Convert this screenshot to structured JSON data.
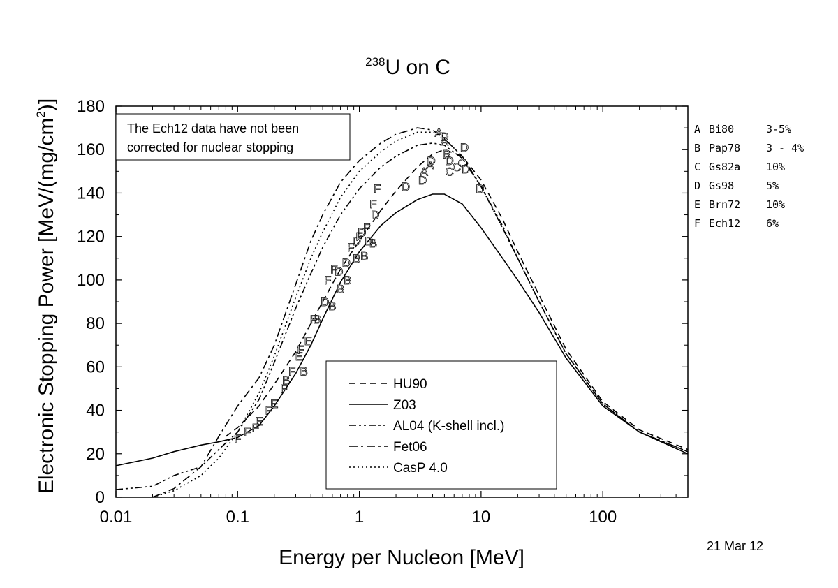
{
  "chart_data": {
    "type": "line",
    "title_sup": "238",
    "title_main": "U on C",
    "xlabel": "Energy per Nucleon [MeV]",
    "ylabel_main": "Electronic Stopping Power [MeV/(mg/cm",
    "ylabel_sup": "2",
    "ylabel_end": ")]",
    "x_scale": "log",
    "xlim": [
      0.01,
      500
    ],
    "ylim": [
      0,
      180
    ],
    "x_ticks": [
      {
        "value": 0.01,
        "label": "0.01"
      },
      {
        "value": 0.1,
        "label": "0.1"
      },
      {
        "value": 1,
        "label": "1"
      },
      {
        "value": 10,
        "label": "10"
      },
      {
        "value": 100,
        "label": "100"
      }
    ],
    "y_ticks": [
      {
        "value": 0,
        "label": "0"
      },
      {
        "value": 20,
        "label": "20"
      },
      {
        "value": 40,
        "label": "40"
      },
      {
        "value": 60,
        "label": "60"
      },
      {
        "value": 80,
        "label": "80"
      },
      {
        "value": 100,
        "label": "100"
      },
      {
        "value": 120,
        "label": "120"
      },
      {
        "value": 140,
        "label": "140"
      },
      {
        "value": 160,
        "label": "160"
      },
      {
        "value": 180,
        "label": "180"
      }
    ],
    "grid": false,
    "legend_placement": "bottom-center",
    "series": [
      {
        "name": "HU90",
        "dash": "dash",
        "x": [
          0.08,
          0.1,
          0.15,
          0.2,
          0.3,
          0.4,
          0.5,
          0.7,
          1,
          1.5,
          2,
          3,
          4,
          5,
          7,
          10,
          15,
          20,
          30,
          50,
          100,
          200,
          500
        ],
        "y": [
          28,
          32,
          42,
          52,
          67,
          80,
          90,
          105,
          118,
          132,
          141,
          152,
          158,
          160,
          157,
          146,
          128,
          113,
          93,
          68,
          44,
          31,
          22
        ]
      },
      {
        "name": "Z03",
        "dash": "solid",
        "x": [
          0.01,
          0.02,
          0.03,
          0.05,
          0.07,
          0.1,
          0.15,
          0.2,
          0.3,
          0.4,
          0.5,
          0.7,
          1,
          1.5,
          2,
          3,
          4,
          5,
          7,
          10,
          15,
          20,
          30,
          50,
          100,
          200,
          500
        ],
        "y": [
          14.5,
          18,
          21,
          24,
          25.5,
          27.5,
          33,
          42,
          57,
          70,
          82,
          99,
          113,
          125,
          131,
          137,
          139.5,
          139.5,
          135,
          124,
          110,
          100,
          85,
          64,
          42,
          30,
          20
        ]
      },
      {
        "name": "AL04 (K-shell incl.)",
        "dash": "dashdotdot",
        "x": [
          0.01,
          0.02,
          0.03,
          0.05,
          0.07,
          0.1,
          0.15,
          0.2,
          0.3,
          0.4,
          0.5,
          0.7,
          1,
          1.5,
          2,
          3,
          4,
          5,
          7,
          10,
          15,
          20,
          30,
          50,
          100,
          200,
          500
        ],
        "y": [
          3.5,
          5,
          10,
          14,
          22,
          30,
          45,
          62,
          87,
          103,
          115,
          130,
          142,
          152,
          157,
          162,
          163,
          162,
          156,
          143,
          125,
          110,
          90,
          66,
          43,
          30,
          21
        ]
      },
      {
        "name": "Fet06",
        "dash": "dashdot",
        "x": [
          0.02,
          0.03,
          0.05,
          0.07,
          0.1,
          0.15,
          0.2,
          0.3,
          0.4,
          0.5,
          0.7,
          1,
          1.5,
          2,
          3,
          4,
          5,
          7,
          10,
          15,
          20,
          30,
          50,
          100,
          200,
          500
        ],
        "y": [
          0,
          4,
          14,
          28,
          42,
          55,
          70,
          98,
          118,
          130,
          145,
          155,
          163,
          167,
          170,
          169,
          165,
          157,
          143,
          124,
          110,
          90,
          66,
          43,
          30,
          21
        ]
      },
      {
        "name": "CasP 4.0",
        "dash": "dot",
        "x": [
          0.02,
          0.03,
          0.05,
          0.07,
          0.1,
          0.15,
          0.2,
          0.3,
          0.4,
          0.5,
          0.7,
          1,
          1.5,
          2,
          3,
          4,
          5,
          7,
          10,
          15,
          20,
          30,
          50,
          100,
          200,
          500
        ],
        "y": [
          0,
          3,
          10,
          18,
          30,
          48,
          65,
          92,
          110,
          122,
          138,
          150,
          159,
          164,
          168,
          168,
          165,
          157,
          143,
          124,
          110,
          90,
          66,
          43,
          30,
          21
        ]
      }
    ],
    "experimental_points": [
      {
        "label": "A",
        "x": 3.4,
        "y": 150
      },
      {
        "label": "A",
        "x": 3.8,
        "y": 153
      },
      {
        "label": "A",
        "x": 4.5,
        "y": 168
      },
      {
        "label": "A",
        "x": 5.0,
        "y": 164
      },
      {
        "label": "B",
        "x": 0.25,
        "y": 54
      },
      {
        "label": "B",
        "x": 0.35,
        "y": 58
      },
      {
        "label": "B",
        "x": 0.45,
        "y": 82
      },
      {
        "label": "B",
        "x": 0.6,
        "y": 88
      },
      {
        "label": "B",
        "x": 0.7,
        "y": 96
      },
      {
        "label": "B",
        "x": 0.8,
        "y": 100
      },
      {
        "label": "B",
        "x": 0.95,
        "y": 110
      },
      {
        "label": "B",
        "x": 1.1,
        "y": 111
      },
      {
        "label": "B",
        "x": 1.3,
        "y": 117
      },
      {
        "label": "B",
        "x": 5.2,
        "y": 158
      },
      {
        "label": "C",
        "x": 5.5,
        "y": 150
      },
      {
        "label": "C",
        "x": 6.3,
        "y": 152
      },
      {
        "label": "C",
        "x": 7.0,
        "y": 154
      },
      {
        "label": "D",
        "x": 0.52,
        "y": 90
      },
      {
        "label": "D",
        "x": 0.68,
        "y": 104
      },
      {
        "label": "D",
        "x": 0.78,
        "y": 108
      },
      {
        "label": "D",
        "x": 0.95,
        "y": 118
      },
      {
        "label": "D",
        "x": 1.05,
        "y": 122
      },
      {
        "label": "D",
        "x": 1.2,
        "y": 118
      },
      {
        "label": "D",
        "x": 1.35,
        "y": 130
      },
      {
        "label": "D",
        "x": 2.4,
        "y": 143
      },
      {
        "label": "D",
        "x": 3.3,
        "y": 146
      },
      {
        "label": "D",
        "x": 3.9,
        "y": 155
      },
      {
        "label": "D",
        "x": 5.0,
        "y": 166
      },
      {
        "label": "D",
        "x": 5.5,
        "y": 155
      },
      {
        "label": "D",
        "x": 7.3,
        "y": 161
      },
      {
        "label": "D",
        "x": 7.5,
        "y": 151
      },
      {
        "label": "D",
        "x": 9.8,
        "y": 142
      },
      {
        "label": "E",
        "x": 0.15,
        "y": 35
      },
      {
        "label": "E",
        "x": 0.2,
        "y": 43
      },
      {
        "label": "E",
        "x": 0.32,
        "y": 65
      },
      {
        "label": "E",
        "x": 0.38,
        "y": 72
      },
      {
        "label": "F",
        "x": 0.1,
        "y": 27
      },
      {
        "label": "F",
        "x": 0.12,
        "y": 30
      },
      {
        "label": "F",
        "x": 0.14,
        "y": 32
      },
      {
        "label": "F",
        "x": 0.18,
        "y": 40
      },
      {
        "label": "F",
        "x": 0.24,
        "y": 50
      },
      {
        "label": "F",
        "x": 0.28,
        "y": 58
      },
      {
        "label": "F",
        "x": 0.33,
        "y": 68
      },
      {
        "label": "F",
        "x": 0.42,
        "y": 82
      },
      {
        "label": "F",
        "x": 0.55,
        "y": 100
      },
      {
        "label": "F",
        "x": 0.62,
        "y": 105
      },
      {
        "label": "F",
        "x": 0.85,
        "y": 115
      },
      {
        "label": "F",
        "x": 1.0,
        "y": 120
      },
      {
        "label": "F",
        "x": 1.15,
        "y": 124
      },
      {
        "label": "F",
        "x": 1.3,
        "y": 135
      },
      {
        "label": "F",
        "x": 1.4,
        "y": 142
      }
    ],
    "references": [
      {
        "letter": "A",
        "name": "Bi80",
        "uncertainty": "3-5%"
      },
      {
        "letter": "B",
        "name": "Pap78",
        "uncertainty": "3 - 4%"
      },
      {
        "letter": "C",
        "name": "Gs82a",
        "uncertainty": "10%"
      },
      {
        "letter": "D",
        "name": "Gs98",
        "uncertainty": "5%"
      },
      {
        "letter": "E",
        "name": "Brn72",
        "uncertainty": "10%"
      },
      {
        "letter": "F",
        "name": "Ech12",
        "uncertainty": "6%"
      }
    ],
    "note_lines": [
      "The Ech12 data have not been",
      "corrected for nuclear stopping"
    ],
    "date": "21 Mar 12"
  }
}
